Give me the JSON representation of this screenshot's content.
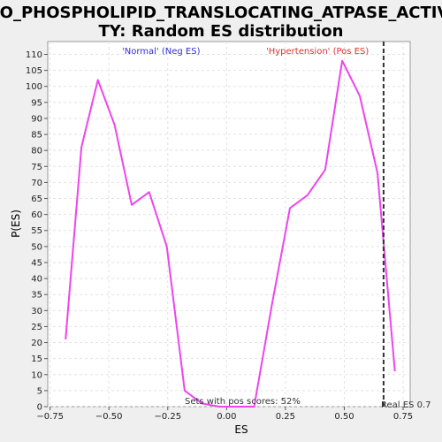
{
  "chart_data": {
    "type": "line",
    "title_line1": "GO_PHOSPHOLIPID_TRANSLOCATING_ATPASE_ACTIVI",
    "title_line2": "TY: Random ES distribution",
    "xlabel": "ES",
    "ylabel": "P(ES)",
    "xlim": [
      -0.76,
      0.78
    ],
    "ylim": [
      0,
      114
    ],
    "x_ticks": [
      -0.75,
      -0.5,
      -0.25,
      0.0,
      0.25,
      0.5,
      0.75
    ],
    "x_tick_labels": [
      "−0.75",
      "−0.50",
      "−0.25",
      "0.00",
      "0.25",
      "0.50",
      "0.75"
    ],
    "y_ticks": [
      0,
      5,
      10,
      15,
      20,
      25,
      30,
      35,
      40,
      45,
      50,
      55,
      60,
      65,
      70,
      75,
      80,
      85,
      90,
      95,
      100,
      105,
      110
    ],
    "grid": true,
    "series": [
      {
        "color": "#ee44ee",
        "x": [
          -0.684,
          -0.617,
          -0.547,
          -0.476,
          -0.403,
          -0.329,
          -0.254,
          -0.178,
          -0.105,
          -0.031,
          0.042,
          0.117,
          0.193,
          0.269,
          0.343,
          0.419,
          0.491,
          0.566,
          0.641,
          0.715
        ],
        "y": [
          21,
          81,
          102,
          88,
          63,
          67,
          50,
          5,
          1,
          0,
          0,
          0,
          32,
          62,
          66,
          74,
          108,
          97,
          73,
          11
        ]
      }
    ],
    "annotations": {
      "neg_label": "'Normal' (Neg ES)",
      "neg_color": "#3333cc",
      "pos_label": "'Hypertension' (Pos ES)",
      "pos_color": "#dd3333",
      "sets_text": "Sets with pos scores: 52%",
      "real_es_text": "Real ES 0.7",
      "real_es_x": 0.667
    }
  }
}
